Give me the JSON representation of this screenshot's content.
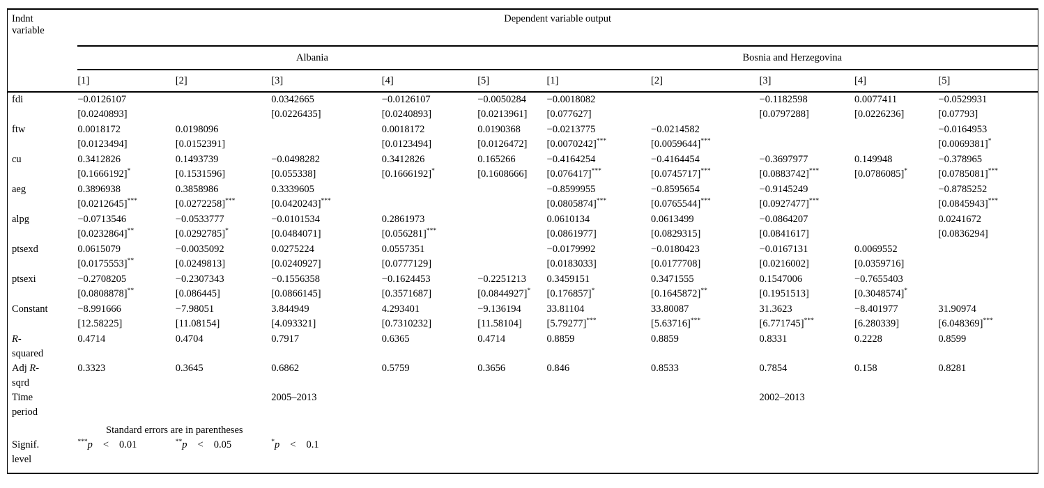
{
  "table": {
    "row_header_lines": [
      "Indnt",
      "variable"
    ],
    "dependent_header": "Dependent variable output",
    "groups": [
      {
        "label": "Albania"
      },
      {
        "label": "Bosnia and Herzegovina"
      }
    ],
    "col_labels": [
      "[1]",
      "[2]",
      "[3]",
      "[4]",
      "[5]"
    ],
    "rows": [
      {
        "label": "fdi",
        "cells": [
          {
            "coef": "−0.0126107",
            "se": "[0.0240893]",
            "stars": ""
          },
          null,
          {
            "coef": "0.0342665",
            "se": "[0.0226435]",
            "stars": ""
          },
          {
            "coef": "−0.0126107",
            "se": "[0.0240893]",
            "stars": ""
          },
          {
            "coef": "−0.0050284",
            "se": "[0.0213961]",
            "stars": ""
          },
          {
            "coef": "−0.0018082",
            "se": "[0.077627]",
            "stars": ""
          },
          null,
          {
            "coef": "−0.1182598",
            "se": "[0.0797288]",
            "stars": ""
          },
          {
            "coef": "0.0077411",
            "se": "[0.0226236]",
            "stars": ""
          },
          {
            "coef": "−0.0529931",
            "se": "[0.07793]",
            "stars": ""
          }
        ]
      },
      {
        "label": "ftw",
        "cells": [
          {
            "coef": "0.0018172",
            "se": "[0.0123494]",
            "stars": ""
          },
          {
            "coef": "0.0198096",
            "se": "[0.0152391]",
            "stars": ""
          },
          null,
          {
            "coef": "0.0018172",
            "se": "[0.0123494]",
            "stars": ""
          },
          {
            "coef": "0.0190368",
            "se": "[0.0126472]",
            "stars": ""
          },
          {
            "coef": "−0.0213775",
            "se": "[0.0070242]",
            "stars": "***"
          },
          {
            "coef": "−0.0214582",
            "se": "[0.0059644]",
            "stars": "***"
          },
          null,
          null,
          {
            "coef": "−0.0164953",
            "se": "[0.0069381]",
            "stars": "*"
          }
        ]
      },
      {
        "label": "cu",
        "cells": [
          {
            "coef": "0.3412826",
            "se": "[0.1666192]",
            "stars": "*"
          },
          {
            "coef": "0.1493739",
            "se": "[0.1531596]",
            "stars": ""
          },
          {
            "coef": "−0.0498282",
            "se": "[0.055338]",
            "stars": ""
          },
          {
            "coef": "0.3412826",
            "se": "[0.1666192]",
            "stars": "*"
          },
          {
            "coef": "0.165266",
            "se": "[0.1608666]",
            "stars": ""
          },
          {
            "coef": "−0.4164254",
            "se": "[0.076417]",
            "stars": "***"
          },
          {
            "coef": "−0.4164454",
            "se": "[0.0745717]",
            "stars": "***"
          },
          {
            "coef": "−0.3697977",
            "se": "[0.0883742]",
            "stars": "***"
          },
          {
            "coef": "0.149948",
            "se": "[0.0786085]",
            "stars": "*"
          },
          {
            "coef": "−0.378965",
            "se": "[0.0785081]",
            "stars": "***"
          }
        ]
      },
      {
        "label": "aeg",
        "cells": [
          {
            "coef": "0.3896938",
            "se": "[0.0212645]",
            "stars": "***"
          },
          {
            "coef": "0.3858986",
            "se": "[0.0272258]",
            "stars": "***"
          },
          {
            "coef": "0.3339605",
            "se": "[0.0420243]",
            "stars": "***"
          },
          null,
          null,
          {
            "coef": "−0.8599955",
            "se": "[0.0805874]",
            "stars": "***"
          },
          {
            "coef": "−0.8595654",
            "se": "[0.0765544]",
            "stars": "***"
          },
          {
            "coef": "−0.9145249",
            "se": "[0.0927477]",
            "stars": "***"
          },
          null,
          {
            "coef": "−0.8785252",
            "se": "[0.0845943]",
            "stars": "***"
          }
        ]
      },
      {
        "label": "alpg",
        "cells": [
          {
            "coef": "−0.0713546",
            "se": "[0.0232864]",
            "stars": "**"
          },
          {
            "coef": "−0.0533777",
            "se": "[0.0292785]",
            "stars": "*"
          },
          {
            "coef": "−0.0101534",
            "se": "[0.0484071]",
            "stars": ""
          },
          {
            "coef": "0.2861973",
            "se": "[0.056281]",
            "stars": "***"
          },
          null,
          {
            "coef": "0.0610134",
            "se": "[0.0861977]",
            "stars": ""
          },
          {
            "coef": "0.0613499",
            "se": "[0.0829315]",
            "stars": ""
          },
          {
            "coef": "−0.0864207",
            "se": "[0.0841617]",
            "stars": ""
          },
          null,
          {
            "coef": "0.0241672",
            "se": "[0.0836294]",
            "stars": ""
          }
        ]
      },
      {
        "label": "ptsexd",
        "cells": [
          {
            "coef": "0.0615079",
            "se": "[0.0175553]",
            "stars": "**"
          },
          {
            "coef": "−0.0035092",
            "se": "[0.0249813]",
            "stars": ""
          },
          {
            "coef": "0.0275224",
            "se": "[0.0240927]",
            "stars": ""
          },
          {
            "coef": "0.0557351",
            "se": "[0.0777129]",
            "stars": ""
          },
          null,
          {
            "coef": "−0.0179992",
            "se": "[0.0183033]",
            "stars": ""
          },
          {
            "coef": "−0.0180423",
            "se": "[0.0177708]",
            "stars": ""
          },
          {
            "coef": "−0.0167131",
            "se": "[0.0216002]",
            "stars": ""
          },
          {
            "coef": "0.0069552",
            "se": "[0.0359716]",
            "stars": ""
          },
          null
        ]
      },
      {
        "label": "ptsexi",
        "cells": [
          {
            "coef": "−0.2708205",
            "se": "[0.0808878]",
            "stars": "**"
          },
          {
            "coef": "−0.2307343",
            "se": "[0.086445]",
            "stars": ""
          },
          {
            "coef": "−0.1556358",
            "se": "[0.0866145]",
            "stars": ""
          },
          {
            "coef": "−0.1624453",
            "se": "[0.3571687]",
            "stars": ""
          },
          {
            "coef": "−0.2251213",
            "se": "[0.0844927]",
            "stars": "*"
          },
          {
            "coef": "0.3459151",
            "se": "[0.176857]",
            "stars": "*"
          },
          {
            "coef": "0.3471555",
            "se": "[0.1645872]",
            "stars": "**"
          },
          {
            "coef": "0.1547006",
            "se": "[0.1951513]",
            "stars": ""
          },
          {
            "coef": "−0.7655403",
            "se": "[0.3048574]",
            "stars": "*"
          },
          null
        ]
      },
      {
        "label": "Constant",
        "cells": [
          {
            "coef": "−8.991666",
            "se": "[12.58225]",
            "stars": ""
          },
          {
            "coef": "−7.98051",
            "se": "[11.08154]",
            "stars": ""
          },
          {
            "coef": "3.844949",
            "se": "[4.093321]",
            "stars": ""
          },
          {
            "coef": "4.293401",
            "se": "[0.7310232]",
            "stars": ""
          },
          {
            "coef": "−9.136194",
            "se": "[11.58104]",
            "stars": ""
          },
          {
            "coef": "33.81104",
            "se": "[5.79277]",
            "stars": "***"
          },
          {
            "coef": "33.80087",
            "se": "[5.63716]",
            "stars": "***"
          },
          {
            "coef": "31.3623",
            "se": "[6.771745]",
            "stars": "***"
          },
          {
            "coef": "−8.401977",
            "se": "[6.280339]",
            "stars": ""
          },
          {
            "coef": "31.90974",
            "se": "[6.048369]",
            "stars": "***"
          }
        ]
      }
    ],
    "stat_rows": [
      {
        "label_lines": [
          "R-",
          "squared"
        ],
        "italic_r": true,
        "values": [
          "0.4714",
          "0.4704",
          "0.7917",
          "0.6365",
          "0.4714",
          "0.8859",
          "0.8859",
          "0.8331",
          "0.2228",
          "0.8599"
        ]
      },
      {
        "label_lines": [
          "Adj R-",
          "sqrd"
        ],
        "italic_r": true,
        "values": [
          "0.3323",
          "0.3645",
          "0.6862",
          "0.5759",
          "0.3656",
          "0.846",
          "0.8533",
          "0.7854",
          "0.158",
          "0.8281"
        ]
      },
      {
        "label_lines": [
          "Time",
          "period"
        ],
        "italic_r": false,
        "values": [
          "",
          "",
          "2005–2013",
          "",
          "",
          "",
          "",
          "2002–2013",
          "",
          ""
        ]
      }
    ],
    "notes": {
      "se_note": "Standard errors are in parentheses",
      "signif_label_lines": [
        "Signif.",
        "level"
      ],
      "signif_entries": [
        {
          "stars": "***",
          "var": "p",
          "op": "<",
          "value": "0.01"
        },
        {
          "stars": "**",
          "var": "p",
          "op": "<",
          "value": "0.05"
        },
        {
          "stars": "*",
          "var": "p",
          "op": "<",
          "value": "0.1"
        }
      ]
    }
  }
}
